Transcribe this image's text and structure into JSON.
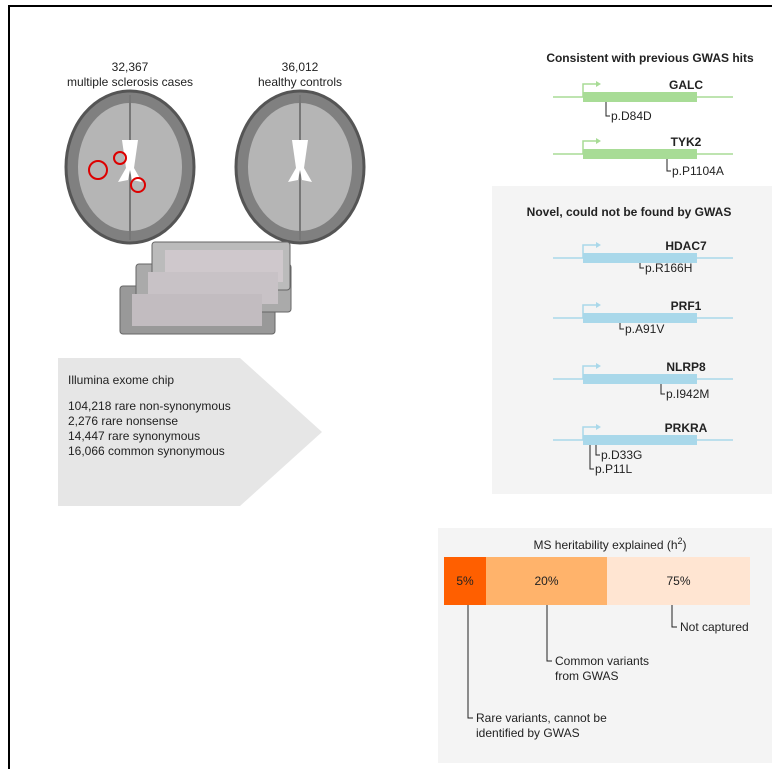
{
  "cohorts": [
    {
      "count": "32,367",
      "label": "multiple sclerosis cases"
    },
    {
      "count": "36,012",
      "label": "healthy controls"
    }
  ],
  "chip": {
    "title": "Illumina exome chip",
    "variants": [
      "104,218 rare non-synonymous",
      "2,276 rare nonsense",
      "14,447 rare synonymous",
      "16,066 common synonymous"
    ]
  },
  "consistent": {
    "title": "Consistent with previous GWAS hits",
    "genes": [
      {
        "name": "GALC",
        "variants": [
          "p.D84D"
        ]
      },
      {
        "name": "TYK2",
        "variants": [
          "p.P1104A"
        ]
      }
    ]
  },
  "novel": {
    "title": "Novel, could not be found by GWAS",
    "genes": [
      {
        "name": "HDAC7",
        "variants": [
          "p.R166H"
        ]
      },
      {
        "name": "PRF1",
        "variants": [
          "p.A91V"
        ]
      },
      {
        "name": "NLRP8",
        "variants": [
          "p.I942M"
        ]
      },
      {
        "name": "PRKRA",
        "variants": [
          "p.D33G",
          "p.P11L"
        ]
      }
    ]
  },
  "heritability": {
    "title": [
      "MS heritability explained (h",
      "2",
      ")"
    ],
    "segments": [
      {
        "label": "5%",
        "note": [
          "Rare variants, cannot be",
          "identified by GWAS"
        ]
      },
      {
        "label": "20%",
        "note": [
          "Common variants",
          "from GWAS"
        ]
      },
      {
        "label": "75%",
        "note": [
          "Not captured"
        ]
      }
    ]
  }
}
